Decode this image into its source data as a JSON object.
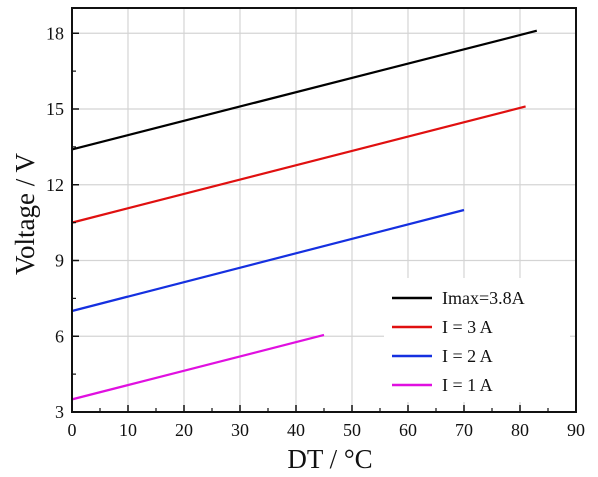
{
  "chart_data": {
    "type": "line",
    "xlabel": "DT / °C",
    "ylabel": "Voltage / V",
    "xlim": [
      0,
      90
    ],
    "ylim": [
      3,
      19
    ],
    "xticks": [
      0,
      10,
      20,
      30,
      40,
      50,
      60,
      70,
      80,
      90
    ],
    "yticks": [
      3,
      6,
      9,
      12,
      15,
      18
    ],
    "grid": true,
    "legend_position": "bottom-right",
    "series": [
      {
        "name": "Imax=3.8A",
        "color": "#000000",
        "x": [
          0,
          83
        ],
        "y": [
          13.4,
          18.1
        ]
      },
      {
        "name": "I = 3 A",
        "color": "#e01010",
        "x": [
          0,
          81
        ],
        "y": [
          10.5,
          15.1
        ]
      },
      {
        "name": "I = 2 A",
        "color": "#1530e0",
        "x": [
          0,
          70
        ],
        "y": [
          7.0,
          11.0
        ]
      },
      {
        "name": "I = 1 A",
        "color": "#e010e0",
        "x": [
          0,
          45
        ],
        "y": [
          3.5,
          6.05
        ]
      }
    ]
  }
}
